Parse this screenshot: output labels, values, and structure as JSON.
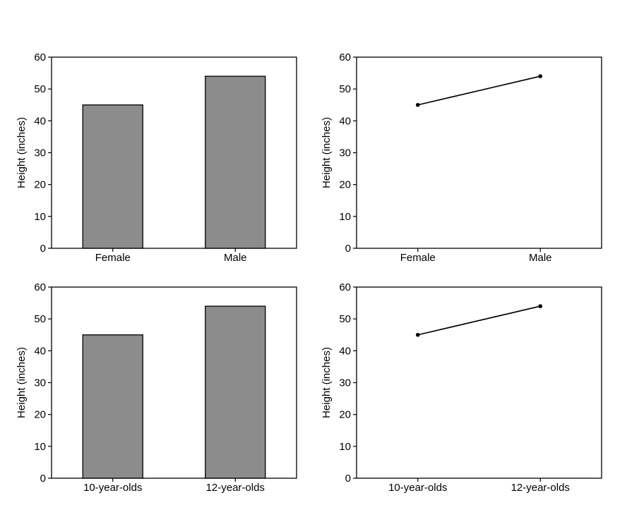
{
  "chart_data": [
    {
      "type": "bar",
      "categories": [
        "Female",
        "Male"
      ],
      "values": [
        45,
        54
      ],
      "ylabel": "Height (inches)",
      "xlabel": "",
      "ylim": [
        0,
        60
      ],
      "yticks": [
        "0",
        "10",
        "20",
        "30",
        "40",
        "50",
        "60"
      ],
      "grid": false,
      "colors": {
        "bar": "#8c8c8c"
      }
    },
    {
      "type": "line",
      "categories": [
        "Female",
        "Male"
      ],
      "values": [
        45,
        54
      ],
      "ylabel": "Height (inches)",
      "xlabel": "",
      "ylim": [
        0,
        60
      ],
      "yticks": [
        "0",
        "10",
        "20",
        "30",
        "40",
        "50",
        "60"
      ],
      "grid": false,
      "colors": {
        "line": "#000000"
      }
    },
    {
      "type": "bar",
      "categories": [
        "10-year-olds",
        "12-year-olds"
      ],
      "values": [
        45,
        54
      ],
      "ylabel": "Height (inches)",
      "xlabel": "",
      "ylim": [
        0,
        60
      ],
      "yticks": [
        "0",
        "10",
        "20",
        "30",
        "40",
        "50",
        "60"
      ],
      "grid": false,
      "colors": {
        "bar": "#8c8c8c"
      }
    },
    {
      "type": "line",
      "categories": [
        "10-year-olds",
        "12-year-olds"
      ],
      "values": [
        45,
        54
      ],
      "ylabel": "Height (inches)",
      "xlabel": "",
      "ylim": [
        0,
        60
      ],
      "yticks": [
        "0",
        "10",
        "20",
        "30",
        "40",
        "50",
        "60"
      ],
      "grid": false,
      "colors": {
        "line": "#000000"
      }
    }
  ]
}
